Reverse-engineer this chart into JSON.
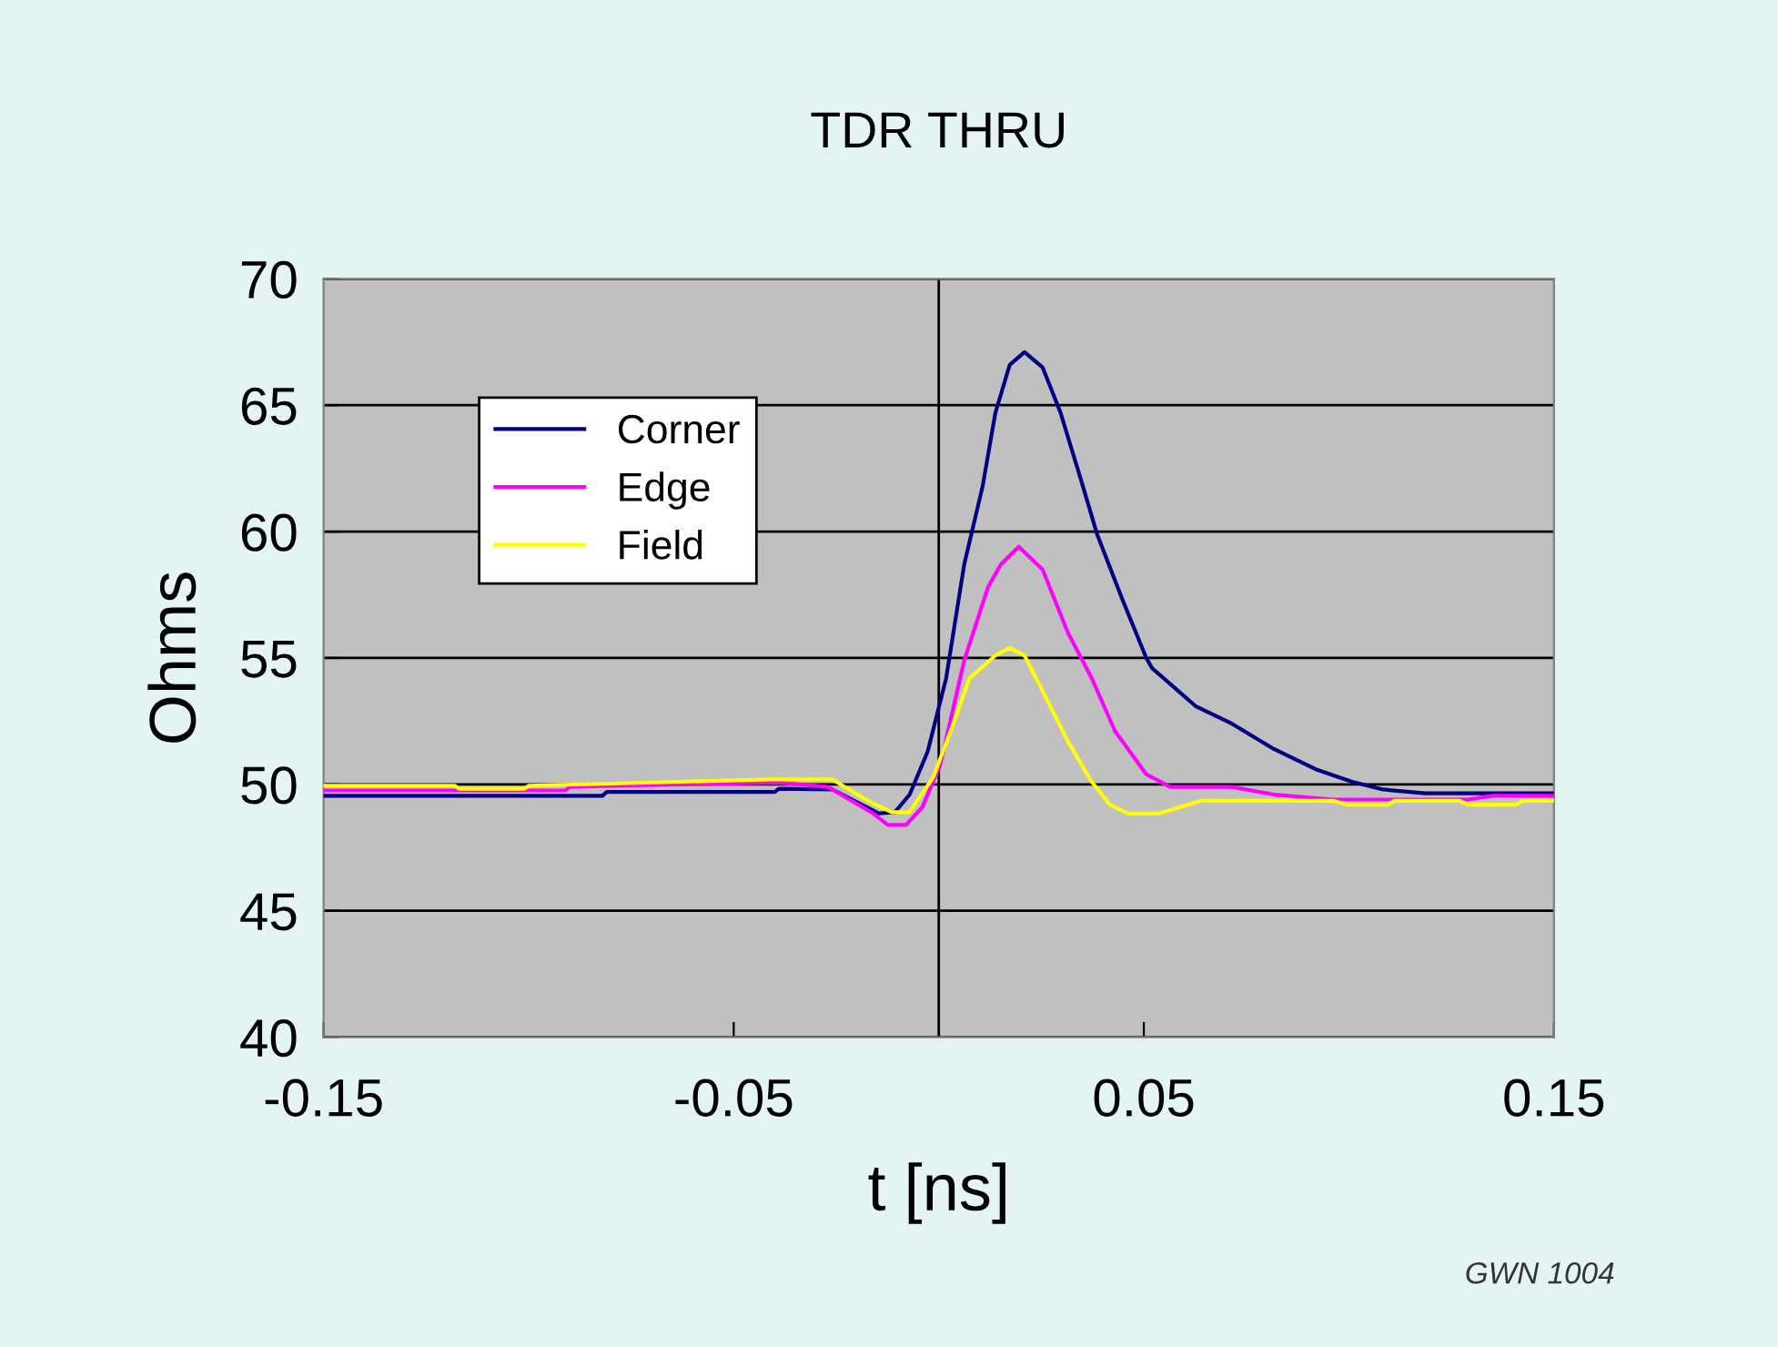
{
  "chart_data": {
    "type": "line",
    "title": "TDR THRU",
    "xlabel": "t [ns]",
    "ylabel": "Ohms",
    "annotations": [
      "GWN 1004"
    ],
    "xlim": [
      -0.15,
      0.15
    ],
    "xticks": [
      -0.15,
      -0.05,
      0.05,
      0.15
    ],
    "ylim": [
      40,
      70
    ],
    "yticks": [
      40,
      45,
      50,
      55,
      60,
      65,
      70
    ],
    "grid": "y",
    "legend": "top left",
    "marker": "none",
    "line_style": "solid",
    "ref_lines": [
      {
        "axis": "x",
        "value": 0,
        "color": "#000000"
      }
    ],
    "series": [
      {
        "name": "Corner",
        "color": "#000080",
        "x": [
          -0.15,
          -0.082,
          -0.081,
          -0.04,
          -0.039,
          -0.026,
          -0.0146,
          -0.0107,
          -0.0071,
          -0.0027,
          0.0018,
          0.0062,
          0.0107,
          0.0138,
          0.0173,
          0.0209,
          0.0253,
          0.0297,
          0.0342,
          0.0386,
          0.0448,
          0.0506,
          0.052,
          0.0626,
          0.0715,
          0.0817,
          0.0919,
          0.1008,
          0.1083,
          0.1185,
          0.15
        ],
        "values": [
          49.55,
          49.55,
          49.7,
          49.7,
          49.83,
          49.8,
          48.85,
          48.9,
          49.6,
          51.3,
          54.2,
          58.7,
          61.8,
          64.7,
          66.6,
          67.1,
          66.5,
          64.7,
          62.3,
          59.9,
          57.3,
          55.0,
          54.6,
          53.1,
          52.4,
          51.4,
          50.6,
          50.1,
          49.8,
          49.65,
          49.65
        ]
      },
      {
        "name": "Edge",
        "color": "#ff00ff",
        "x": [
          -0.15,
          -0.091,
          -0.09,
          -0.078,
          -0.039,
          -0.027,
          -0.016,
          -0.0124,
          -0.008,
          -0.004,
          0.0004,
          0.0062,
          0.012,
          0.0151,
          0.0195,
          0.0253,
          0.0315,
          0.0373,
          0.043,
          0.0506,
          0.0564,
          0.0715,
          0.0817,
          0.0963,
          0.108,
          0.129,
          0.135,
          0.15
        ],
        "values": [
          49.76,
          49.76,
          49.9,
          49.95,
          50.07,
          49.9,
          48.85,
          48.4,
          48.4,
          49.1,
          50.8,
          54.9,
          57.8,
          58.7,
          59.4,
          58.5,
          56.0,
          54.2,
          52.1,
          50.4,
          49.9,
          49.9,
          49.6,
          49.4,
          49.4,
          49.4,
          49.55,
          49.55
        ]
      },
      {
        "name": "Field",
        "color": "#ffff00",
        "x": [
          -0.15,
          -0.118,
          -0.117,
          -0.101,
          -0.1,
          -0.08,
          -0.041,
          -0.026,
          -0.0173,
          -0.0115,
          -0.0071,
          -0.0013,
          0.0031,
          0.0075,
          0.0138,
          0.0173,
          0.0209,
          0.0253,
          0.0315,
          0.0373,
          0.0417,
          0.0462,
          0.0537,
          0.0639,
          0.0963,
          0.0994,
          0.1096,
          0.111,
          0.127,
          0.129,
          0.1407,
          0.1425,
          0.15
        ],
        "values": [
          49.95,
          49.95,
          49.83,
          49.83,
          49.95,
          50.03,
          50.2,
          50.2,
          49.35,
          48.9,
          48.9,
          50.3,
          52.2,
          54.2,
          55.1,
          55.4,
          55.1,
          53.7,
          51.7,
          50.1,
          49.2,
          48.85,
          48.85,
          49.35,
          49.35,
          49.2,
          49.2,
          49.35,
          49.35,
          49.2,
          49.2,
          49.35,
          49.35
        ]
      }
    ]
  }
}
